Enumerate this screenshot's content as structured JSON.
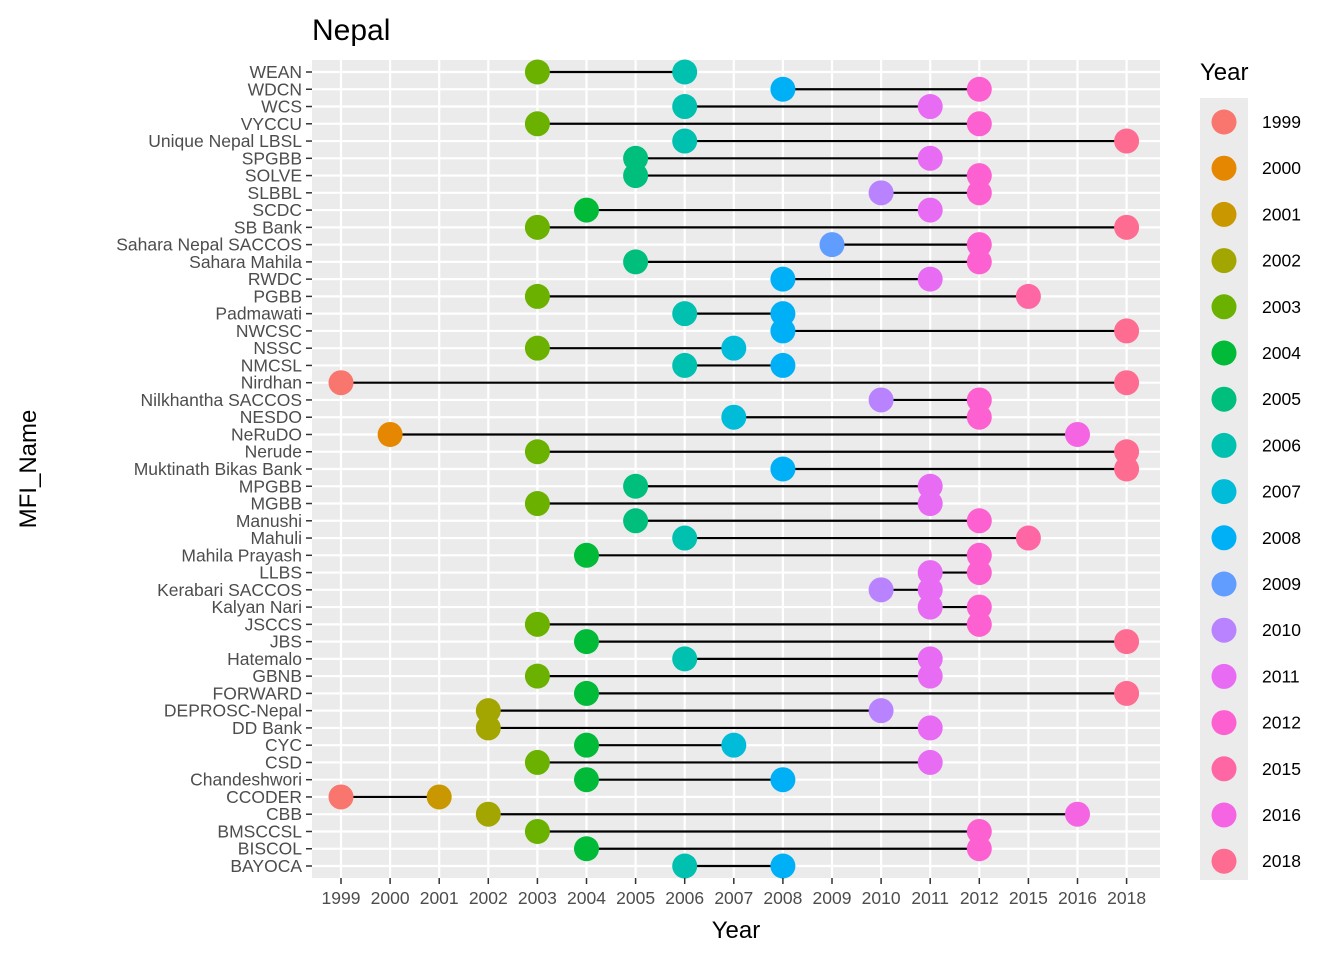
{
  "chart_data": {
    "type": "dumbbell",
    "title": "Nepal",
    "xlabel": "Year",
    "ylabel": "MFI_Name",
    "x_ticks": [
      "1999",
      "2000",
      "2001",
      "2002",
      "2003",
      "2004",
      "2005",
      "2006",
      "2007",
      "2008",
      "2009",
      "2010",
      "2011",
      "2012",
      "2015",
      "2016",
      "2018"
    ],
    "legend": {
      "title": "Year",
      "entries": [
        {
          "label": "1999",
          "color": "#F8766D"
        },
        {
          "label": "2000",
          "color": "#E58700"
        },
        {
          "label": "2001",
          "color": "#C99800"
        },
        {
          "label": "2002",
          "color": "#A3A500"
        },
        {
          "label": "2003",
          "color": "#6BB100"
        },
        {
          "label": "2004",
          "color": "#00BA38"
        },
        {
          "label": "2005",
          "color": "#00BF7D"
        },
        {
          "label": "2006",
          "color": "#00C0AF"
        },
        {
          "label": "2007",
          "color": "#00BCD8"
        },
        {
          "label": "2008",
          "color": "#00B0F6"
        },
        {
          "label": "2009",
          "color": "#619CFF"
        },
        {
          "label": "2010",
          "color": "#B983FF"
        },
        {
          "label": "2011",
          "color": "#E76BF3"
        },
        {
          "label": "2012",
          "color": "#FD61D1"
        },
        {
          "label": "2015",
          "color": "#FF67A4"
        },
        {
          "label": "2016",
          "color": "#F564E3"
        },
        {
          "label": "2018",
          "color": "#FF6C91"
        }
      ]
    },
    "rows": [
      {
        "name": "WEAN",
        "start": "2003",
        "end": "2006"
      },
      {
        "name": "WDCN",
        "start": "2008",
        "end": "2012"
      },
      {
        "name": "WCS",
        "start": "2006",
        "end": "2011"
      },
      {
        "name": "VYCCU",
        "start": "2003",
        "end": "2012"
      },
      {
        "name": "Unique Nepal LBSL",
        "start": "2006",
        "end": "2018"
      },
      {
        "name": "SPGBB",
        "start": "2005",
        "end": "2011"
      },
      {
        "name": "SOLVE",
        "start": "2005",
        "end": "2012"
      },
      {
        "name": "SLBBL",
        "start": "2010",
        "end": "2012"
      },
      {
        "name": "SCDC",
        "start": "2004",
        "end": "2011"
      },
      {
        "name": "SB Bank",
        "start": "2003",
        "end": "2018"
      },
      {
        "name": "Sahara Nepal SACCOS",
        "start": "2009",
        "end": "2012"
      },
      {
        "name": "Sahara Mahila",
        "start": "2005",
        "end": "2012"
      },
      {
        "name": "RWDC",
        "start": "2008",
        "end": "2011"
      },
      {
        "name": "PGBB",
        "start": "2003",
        "end": "2015"
      },
      {
        "name": "Padmawati",
        "start": "2006",
        "end": "2008"
      },
      {
        "name": "NWCSC",
        "start": "2008",
        "end": "2018"
      },
      {
        "name": "NSSC",
        "start": "2003",
        "end": "2007"
      },
      {
        "name": "NMCSL",
        "start": "2006",
        "end": "2008"
      },
      {
        "name": "Nirdhan",
        "start": "1999",
        "end": "2018"
      },
      {
        "name": "Nilkhantha SACCOS",
        "start": "2010",
        "end": "2012"
      },
      {
        "name": "NESDO",
        "start": "2007",
        "end": "2012"
      },
      {
        "name": "NeRuDO",
        "start": "2000",
        "end": "2016"
      },
      {
        "name": "Nerude",
        "start": "2003",
        "end": "2018"
      },
      {
        "name": "Muktinath Bikas Bank",
        "start": "2008",
        "end": "2018"
      },
      {
        "name": "MPGBB",
        "start": "2005",
        "end": "2011"
      },
      {
        "name": "MGBB",
        "start": "2003",
        "end": "2011"
      },
      {
        "name": "Manushi",
        "start": "2005",
        "end": "2012"
      },
      {
        "name": "Mahuli",
        "start": "2006",
        "end": "2015"
      },
      {
        "name": "Mahila Prayash",
        "start": "2004",
        "end": "2012"
      },
      {
        "name": "LLBS",
        "start": "2011",
        "end": "2012"
      },
      {
        "name": "Kerabari SACCOS",
        "start": "2010",
        "end": "2011"
      },
      {
        "name": "Kalyan Nari",
        "start": "2011",
        "end": "2012"
      },
      {
        "name": "JSCCS",
        "start": "2003",
        "end": "2012"
      },
      {
        "name": "JBS",
        "start": "2004",
        "end": "2018"
      },
      {
        "name": "Hatemalo",
        "start": "2006",
        "end": "2011"
      },
      {
        "name": "GBNB",
        "start": "2003",
        "end": "2011"
      },
      {
        "name": "FORWARD",
        "start": "2004",
        "end": "2018"
      },
      {
        "name": "DEPROSC-Nepal",
        "start": "2002",
        "end": "2010"
      },
      {
        "name": "DD Bank",
        "start": "2002",
        "end": "2011"
      },
      {
        "name": "CYC",
        "start": "2004",
        "end": "2007"
      },
      {
        "name": "CSD",
        "start": "2003",
        "end": "2011"
      },
      {
        "name": "Chandeshwori",
        "start": "2004",
        "end": "2008"
      },
      {
        "name": "CCODER",
        "start": "1999",
        "end": "2001"
      },
      {
        "name": "CBB",
        "start": "2002",
        "end": "2016"
      },
      {
        "name": "BMSCCSL",
        "start": "2003",
        "end": "2012"
      },
      {
        "name": "BISCOL",
        "start": "2004",
        "end": "2012"
      },
      {
        "name": "BAYOCA",
        "start": "2006",
        "end": "2008"
      }
    ],
    "grid": true,
    "legend_position": "right"
  }
}
